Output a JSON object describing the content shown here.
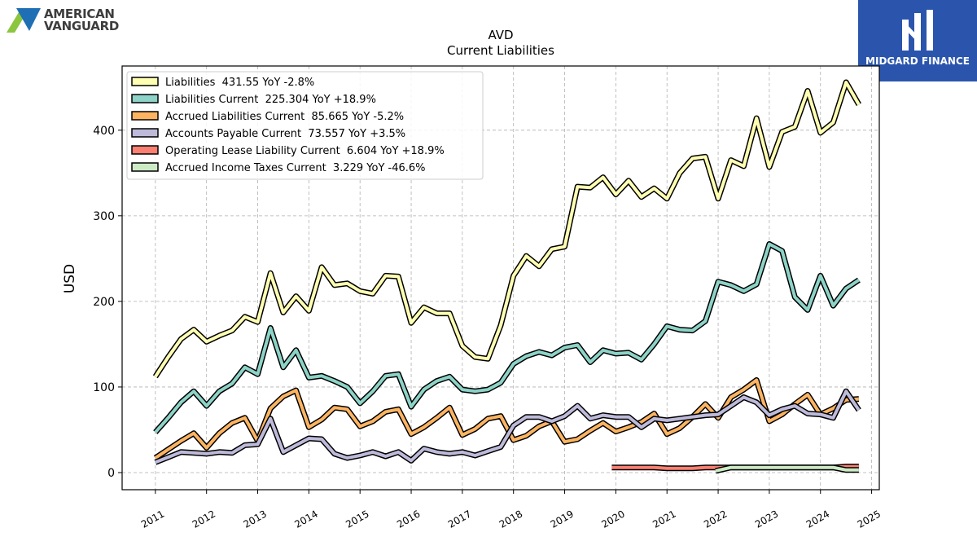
{
  "branding": {
    "left_logo": [
      "AMERICAN",
      "VANGUARD"
    ],
    "right_logo": "MIDGARD FINANCE"
  },
  "colors": {
    "liabilities": "#ffffb3",
    "liabilities_current": "#8dd3c7",
    "accrued_liabilities_current": "#fdb462",
    "accounts_payable_current": "#bebada",
    "operating_lease_liability_current": "#fb8072",
    "accrued_income_taxes_current": "#ccebc5",
    "right_logo_bg": "#2b55ad"
  },
  "chart_data": {
    "type": "line",
    "title": "AVD",
    "subtitle": "Current  Liabilities",
    "ylabel": "USD",
    "xlabel": "",
    "xlim": [
      2010.35,
      2025.15
    ],
    "ylim": [
      -20,
      475
    ],
    "yticks": [
      0,
      100,
      200,
      300,
      400
    ],
    "xticks": [
      2011,
      2012,
      2013,
      2014,
      2015,
      2016,
      2017,
      2018,
      2019,
      2020,
      2021,
      2022,
      2023,
      2024,
      2025
    ],
    "grid": true,
    "legend_position": "top-left",
    "series": [
      {
        "name": "Liabilities  431.55 YoY -2.8%",
        "color_key": "liabilities",
        "points": [
          [
            2011.0,
            112
          ],
          [
            2011.25,
            135
          ],
          [
            2011.5,
            156
          ],
          [
            2011.75,
            167
          ],
          [
            2012.0,
            153
          ],
          [
            2012.25,
            160
          ],
          [
            2012.5,
            166
          ],
          [
            2012.75,
            182
          ],
          [
            2013.0,
            176
          ],
          [
            2013.25,
            233
          ],
          [
            2013.5,
            187
          ],
          [
            2013.75,
            206
          ],
          [
            2014.0,
            189
          ],
          [
            2014.25,
            240
          ],
          [
            2014.5,
            219
          ],
          [
            2014.75,
            221
          ],
          [
            2015.0,
            212
          ],
          [
            2015.25,
            209
          ],
          [
            2015.5,
            230
          ],
          [
            2015.75,
            229
          ],
          [
            2016.0,
            175
          ],
          [
            2016.25,
            193
          ],
          [
            2016.5,
            186
          ],
          [
            2016.75,
            186
          ],
          [
            2017.0,
            148
          ],
          [
            2017.25,
            135
          ],
          [
            2017.5,
            133
          ],
          [
            2017.75,
            172
          ],
          [
            2018.0,
            230
          ],
          [
            2018.25,
            253
          ],
          [
            2018.5,
            241
          ],
          [
            2018.75,
            261
          ],
          [
            2019.0,
            264
          ],
          [
            2019.25,
            334
          ],
          [
            2019.5,
            333
          ],
          [
            2019.75,
            345
          ],
          [
            2020.0,
            325
          ],
          [
            2020.25,
            341
          ],
          [
            2020.5,
            322
          ],
          [
            2020.75,
            332
          ],
          [
            2021.0,
            320
          ],
          [
            2021.25,
            350
          ],
          [
            2021.5,
            367
          ],
          [
            2021.75,
            369
          ],
          [
            2022.0,
            320
          ],
          [
            2022.25,
            365
          ],
          [
            2022.5,
            358
          ],
          [
            2022.75,
            414
          ],
          [
            2023.0,
            357
          ],
          [
            2023.25,
            398
          ],
          [
            2023.5,
            404
          ],
          [
            2023.75,
            446
          ],
          [
            2024.0,
            397
          ],
          [
            2024.25,
            409
          ],
          [
            2024.5,
            456
          ],
          [
            2024.75,
            430
          ]
        ]
      },
      {
        "name": "Liabilities Current  225.304 YoY +18.9%",
        "color_key": "liabilities_current",
        "points": [
          [
            2011.0,
            47
          ],
          [
            2011.25,
            64
          ],
          [
            2011.5,
            82
          ],
          [
            2011.75,
            95
          ],
          [
            2012.0,
            78
          ],
          [
            2012.25,
            95
          ],
          [
            2012.5,
            104
          ],
          [
            2012.75,
            123
          ],
          [
            2013.0,
            115
          ],
          [
            2013.25,
            169
          ],
          [
            2013.5,
            123
          ],
          [
            2013.75,
            143
          ],
          [
            2014.0,
            111
          ],
          [
            2014.25,
            113
          ],
          [
            2014.5,
            107
          ],
          [
            2014.75,
            100
          ],
          [
            2015.0,
            81
          ],
          [
            2015.25,
            95
          ],
          [
            2015.5,
            113
          ],
          [
            2015.75,
            115
          ],
          [
            2016.0,
            77
          ],
          [
            2016.25,
            97
          ],
          [
            2016.5,
            107
          ],
          [
            2016.75,
            112
          ],
          [
            2017.0,
            97
          ],
          [
            2017.25,
            95
          ],
          [
            2017.5,
            97
          ],
          [
            2017.75,
            105
          ],
          [
            2018.0,
            127
          ],
          [
            2018.25,
            136
          ],
          [
            2018.5,
            141
          ],
          [
            2018.75,
            137
          ],
          [
            2019.0,
            146
          ],
          [
            2019.25,
            149
          ],
          [
            2019.5,
            129
          ],
          [
            2019.75,
            143
          ],
          [
            2020.0,
            139
          ],
          [
            2020.25,
            140
          ],
          [
            2020.5,
            132
          ],
          [
            2020.75,
            150
          ],
          [
            2021.0,
            171
          ],
          [
            2021.25,
            167
          ],
          [
            2021.5,
            166
          ],
          [
            2021.75,
            177
          ],
          [
            2022.0,
            223
          ],
          [
            2022.25,
            219
          ],
          [
            2022.5,
            212
          ],
          [
            2022.75,
            220
          ],
          [
            2023.0,
            267
          ],
          [
            2023.25,
            259
          ],
          [
            2023.5,
            205
          ],
          [
            2023.75,
            190
          ],
          [
            2024.0,
            230
          ],
          [
            2024.25,
            195
          ],
          [
            2024.5,
            215
          ],
          [
            2024.75,
            225
          ]
        ]
      },
      {
        "name": "Accrued Liabilities Current  85.665 YoY -5.2%",
        "color_key": "accrued_liabilities_current",
        "points": [
          [
            2011.0,
            17
          ],
          [
            2011.25,
            27
          ],
          [
            2011.5,
            37
          ],
          [
            2011.75,
            46
          ],
          [
            2012.0,
            29
          ],
          [
            2012.25,
            46
          ],
          [
            2012.5,
            58
          ],
          [
            2012.75,
            64
          ],
          [
            2013.0,
            37
          ],
          [
            2013.25,
            75
          ],
          [
            2013.5,
            89
          ],
          [
            2013.75,
            96
          ],
          [
            2014.0,
            53
          ],
          [
            2014.25,
            62
          ],
          [
            2014.5,
            76
          ],
          [
            2014.75,
            74
          ],
          [
            2015.0,
            54
          ],
          [
            2015.25,
            60
          ],
          [
            2015.5,
            71
          ],
          [
            2015.75,
            74
          ],
          [
            2016.0,
            45
          ],
          [
            2016.25,
            53
          ],
          [
            2016.5,
            64
          ],
          [
            2016.75,
            76
          ],
          [
            2017.0,
            44
          ],
          [
            2017.25,
            51
          ],
          [
            2017.5,
            63
          ],
          [
            2017.75,
            66
          ],
          [
            2018.0,
            38
          ],
          [
            2018.25,
            43
          ],
          [
            2018.5,
            54
          ],
          [
            2018.75,
            60
          ],
          [
            2019.0,
            36
          ],
          [
            2019.25,
            39
          ],
          [
            2019.5,
            49
          ],
          [
            2019.75,
            58
          ],
          [
            2020.0,
            48
          ],
          [
            2020.25,
            53
          ],
          [
            2020.5,
            59
          ],
          [
            2020.75,
            69
          ],
          [
            2021.0,
            45
          ],
          [
            2021.25,
            52
          ],
          [
            2021.5,
            65
          ],
          [
            2021.75,
            80
          ],
          [
            2022.0,
            64
          ],
          [
            2022.25,
            88
          ],
          [
            2022.5,
            97
          ],
          [
            2022.75,
            108
          ],
          [
            2023.0,
            60
          ],
          [
            2023.25,
            68
          ],
          [
            2023.5,
            80
          ],
          [
            2023.75,
            91
          ],
          [
            2024.0,
            68
          ],
          [
            2024.25,
            75
          ],
          [
            2024.5,
            85
          ],
          [
            2024.75,
            86
          ]
        ]
      },
      {
        "name": "Accounts Payable Current  73.557 YoY +3.5%",
        "color_key": "accounts_payable_current",
        "points": [
          [
            2011.0,
            12
          ],
          [
            2011.25,
            18
          ],
          [
            2011.5,
            24
          ],
          [
            2011.75,
            23
          ],
          [
            2012.0,
            22
          ],
          [
            2012.25,
            24
          ],
          [
            2012.5,
            23
          ],
          [
            2012.75,
            32
          ],
          [
            2013.0,
            33
          ],
          [
            2013.25,
            63
          ],
          [
            2013.5,
            24
          ],
          [
            2013.75,
            32
          ],
          [
            2014.0,
            40
          ],
          [
            2014.25,
            39
          ],
          [
            2014.5,
            22
          ],
          [
            2014.75,
            17
          ],
          [
            2015.0,
            20
          ],
          [
            2015.25,
            24
          ],
          [
            2015.5,
            19
          ],
          [
            2015.75,
            24
          ],
          [
            2016.0,
            14
          ],
          [
            2016.25,
            28
          ],
          [
            2016.5,
            24
          ],
          [
            2016.75,
            22
          ],
          [
            2017.0,
            24
          ],
          [
            2017.25,
            20
          ],
          [
            2017.5,
            25
          ],
          [
            2017.75,
            30
          ],
          [
            2018.0,
            55
          ],
          [
            2018.25,
            65
          ],
          [
            2018.5,
            65
          ],
          [
            2018.75,
            60
          ],
          [
            2019.0,
            66
          ],
          [
            2019.25,
            78
          ],
          [
            2019.5,
            63
          ],
          [
            2019.75,
            67
          ],
          [
            2020.0,
            65
          ],
          [
            2020.25,
            65
          ],
          [
            2020.5,
            53
          ],
          [
            2020.75,
            63
          ],
          [
            2021.0,
            61
          ],
          [
            2021.25,
            63
          ],
          [
            2021.5,
            65
          ],
          [
            2021.75,
            67
          ],
          [
            2022.0,
            68
          ],
          [
            2022.25,
            78
          ],
          [
            2022.5,
            88
          ],
          [
            2022.75,
            82
          ],
          [
            2023.0,
            67
          ],
          [
            2023.25,
            74
          ],
          [
            2023.5,
            78
          ],
          [
            2023.75,
            69
          ],
          [
            2024.0,
            68
          ],
          [
            2024.25,
            64
          ],
          [
            2024.5,
            95
          ],
          [
            2024.75,
            73
          ]
        ]
      },
      {
        "name": "Operating Lease Liability Current  6.604 YoY +18.9%",
        "color_key": "operating_lease_liability_current",
        "points": [
          [
            2019.92,
            6
          ],
          [
            2020.25,
            6
          ],
          [
            2020.5,
            6
          ],
          [
            2020.75,
            6
          ],
          [
            2021.0,
            5
          ],
          [
            2021.25,
            5
          ],
          [
            2021.5,
            5
          ],
          [
            2021.75,
            6
          ],
          [
            2022.0,
            6
          ],
          [
            2022.25,
            6
          ],
          [
            2022.5,
            6
          ],
          [
            2022.75,
            6
          ],
          [
            2023.0,
            6
          ],
          [
            2023.25,
            6
          ],
          [
            2023.5,
            6
          ],
          [
            2023.75,
            6
          ],
          [
            2024.0,
            6
          ],
          [
            2024.25,
            6
          ],
          [
            2024.5,
            7
          ],
          [
            2024.75,
            7
          ]
        ]
      },
      {
        "name": "Accrued Income Taxes Current  3.229 YoY -46.6%",
        "color_key": "accrued_income_taxes_current",
        "points": [
          [
            2021.95,
            2
          ],
          [
            2022.25,
            6
          ],
          [
            2022.5,
            6
          ],
          [
            2022.75,
            6
          ],
          [
            2023.0,
            6
          ],
          [
            2023.25,
            6
          ],
          [
            2023.5,
            6
          ],
          [
            2023.75,
            6
          ],
          [
            2024.0,
            6
          ],
          [
            2024.25,
            6
          ],
          [
            2024.5,
            3
          ],
          [
            2024.75,
            3
          ]
        ]
      }
    ]
  }
}
